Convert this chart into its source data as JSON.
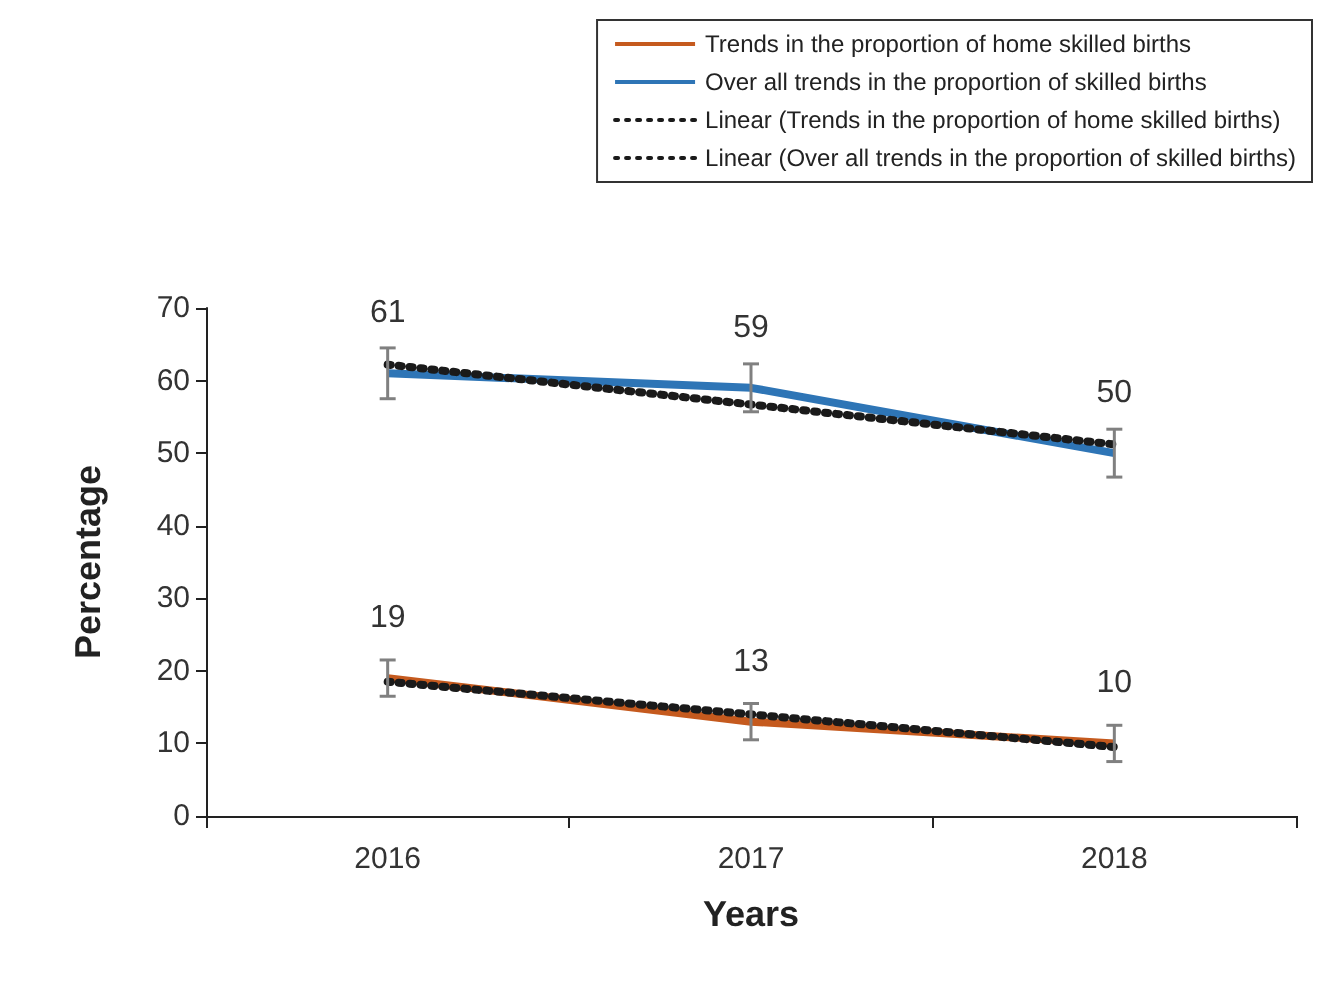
{
  "chart_data": {
    "type": "line",
    "xlabel": "Years",
    "ylabel": "Percentage",
    "categories": [
      "2016",
      "2017",
      "2018"
    ],
    "ylim": [
      0,
      70
    ],
    "yticks": [
      0,
      10,
      20,
      30,
      40,
      50,
      60,
      70
    ],
    "grid": false,
    "legend": "top right",
    "series": [
      {
        "name": "Trends in the proportion of home skilled births",
        "color": "#c55a1e",
        "values": [
          19,
          13,
          10
        ],
        "errors": [
          2.5,
          2.5,
          2.5
        ],
        "value_labels": [
          "19",
          "13",
          "10"
        ],
        "line_style": "solid"
      },
      {
        "name": "Over all trends in the proportion of skilled births",
        "color": "#2e75b6",
        "values": [
          61,
          59,
          50
        ],
        "errors": [
          3.5,
          3.3,
          3.3
        ],
        "value_labels": [
          "61",
          "59",
          "50"
        ],
        "line_style": "solid"
      },
      {
        "name": "Linear (Trends in the proportion of home skilled births)",
        "color": "#1a1a1a",
        "values": [
          18.5,
          14,
          9.5
        ],
        "line_style": "dotted"
      },
      {
        "name": "Linear (Over all trends in the proportion of skilled births)",
        "color": "#1a1a1a",
        "values": [
          62.2,
          56.7,
          51.2
        ],
        "line_style": "dotted"
      }
    ]
  }
}
